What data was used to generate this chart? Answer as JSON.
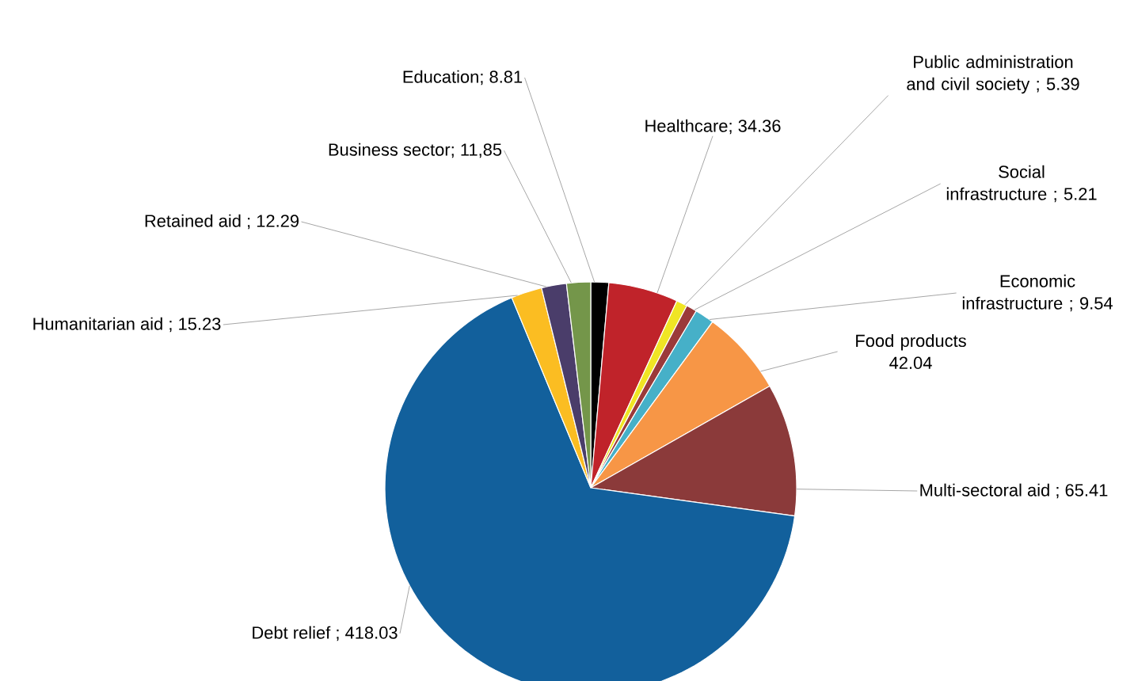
{
  "chart_data": {
    "type": "pie",
    "categories": [
      "Education",
      "Healthcare",
      "Public administration and civil society",
      "Social infrastructure",
      "Economic infrastructure",
      "Food products",
      "Multi-sectoral aid",
      "Debt relief",
      "Humanitarian aid",
      "Retained aid",
      "Business sector"
    ],
    "values": [
      8.81,
      34.36,
      5.39,
      5.21,
      9.54,
      42.04,
      65.41,
      418.03,
      15.23,
      12.29,
      11.85
    ],
    "value_labels": [
      "; 8.81",
      "; 34.36",
      "; 5.39",
      "; 5.21",
      "; 9.54",
      "42.04",
      "; 65.41",
      "; 418.03",
      "; 15.23",
      "; 12.29",
      "; 11,85"
    ],
    "colors": [
      "#000000",
      "#c0232a",
      "#f0e524",
      "#9b3a3a",
      "#46b0c8",
      "#f79646",
      "#8b3a3a",
      "#12609c",
      "#fbbd22",
      "#4a3d6a",
      "#74964a"
    ]
  }
}
